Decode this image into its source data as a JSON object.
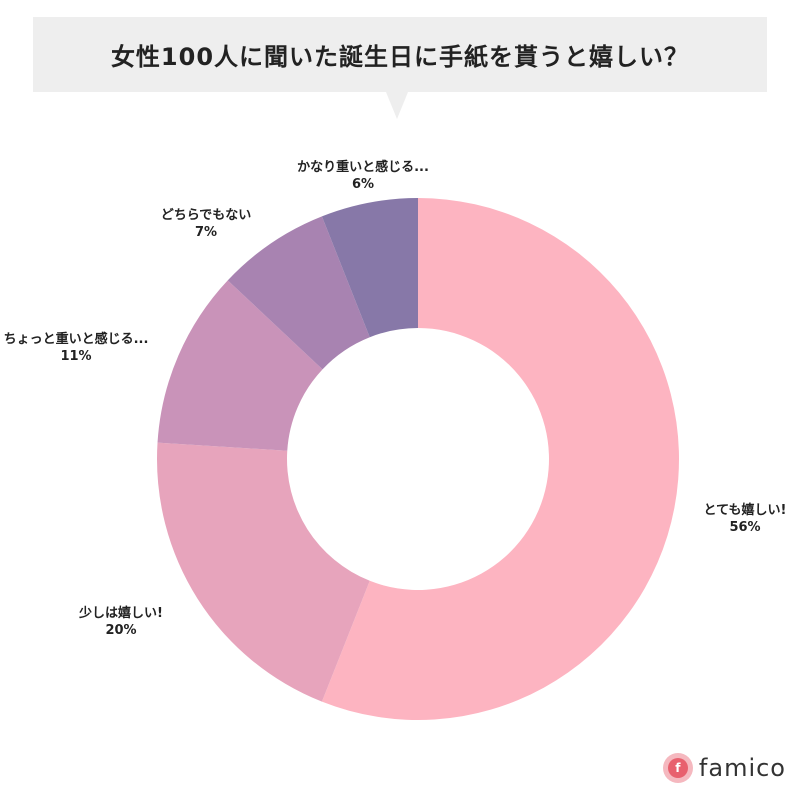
{
  "title": "女性100人に聞いた誕生日に手紙を貰うと嬉しい？",
  "brand": {
    "name": "famico",
    "mark_letter": "f"
  },
  "chart_data": {
    "type": "pie",
    "variant": "donut",
    "title": "女性100人に聞いた誕生日に手紙を貰うと嬉しい？",
    "unit": "%",
    "slices": [
      {
        "label": "とても嬉しい!",
        "value": 56,
        "display": "56%",
        "color": "#fdb4c1"
      },
      {
        "label": "少しは嬉しい!",
        "value": 20,
        "display": "20%",
        "color": "#e7a4bc"
      },
      {
        "label": "ちょっと重いと感じる...",
        "value": 11,
        "display": "11%",
        "color": "#c993b9"
      },
      {
        "label": "どちらでもない",
        "value": 7,
        "display": "7%",
        "color": "#a883b1"
      },
      {
        "label": "かなり重いと感じる...",
        "value": 6,
        "display": "6%",
        "color": "#8778a8"
      }
    ],
    "start_angle_deg": 0,
    "direction": "clockwise"
  }
}
